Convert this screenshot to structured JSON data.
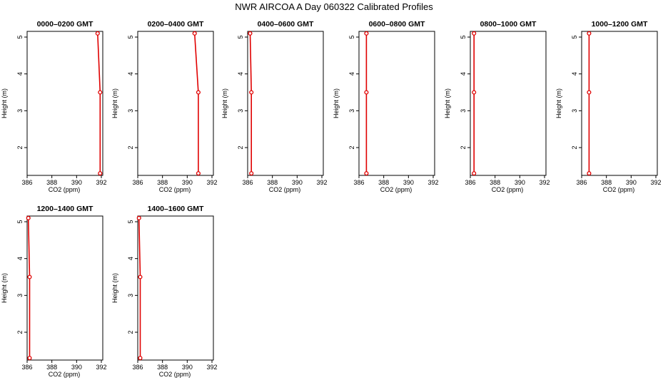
{
  "page_title": "NWR AIRCOA A  Day 060322  Calibrated Profiles",
  "colors": {
    "profile": "#e00000",
    "axis": "#000000",
    "background": "#ffffff"
  },
  "chart_data": [
    {
      "type": "line",
      "title": "0000–0200 GMT",
      "xlabel": "CO2 (ppm)",
      "ylabel": "Height (m)",
      "xlim": [
        386,
        392
      ],
      "ylim": [
        1.3,
        5.1
      ],
      "xticks": [
        "386",
        "388",
        "390",
        "392"
      ],
      "yticks": [
        "2",
        "3",
        "4",
        "5"
      ],
      "series": [
        {
          "x": [
            391.9,
            391.9,
            391.7
          ],
          "y": [
            1.3,
            3.5,
            5.1
          ]
        }
      ]
    },
    {
      "type": "line",
      "title": "0200–0400 GMT",
      "xlabel": "CO2 (ppm)",
      "ylabel": "Height (m)",
      "xlim": [
        386,
        392
      ],
      "ylim": [
        1.3,
        5.1
      ],
      "xticks": [
        "386",
        "388",
        "390",
        "392"
      ],
      "yticks": [
        "2",
        "3",
        "4",
        "5"
      ],
      "series": [
        {
          "x": [
            390.9,
            390.9,
            390.6
          ],
          "y": [
            1.3,
            3.5,
            5.1
          ]
        }
      ]
    },
    {
      "type": "line",
      "title": "0400–0600 GMT",
      "xlabel": "CO2 (ppm)",
      "ylabel": "Height (m)",
      "xlim": [
        386,
        392
      ],
      "ylim": [
        1.3,
        5.1
      ],
      "xticks": [
        "386",
        "388",
        "390",
        "392"
      ],
      "yticks": [
        "2",
        "3",
        "4",
        "5"
      ],
      "series": [
        {
          "x": [
            386.3,
            386.3,
            386.2
          ],
          "y": [
            1.3,
            3.5,
            5.1
          ]
        }
      ]
    },
    {
      "type": "line",
      "title": "0600–0800 GMT",
      "xlabel": "CO2 (ppm)",
      "ylabel": "Height (m)",
      "xlim": [
        386,
        392
      ],
      "ylim": [
        1.3,
        5.1
      ],
      "xticks": [
        "386",
        "388",
        "390",
        "392"
      ],
      "yticks": [
        "2",
        "3",
        "4",
        "5"
      ],
      "series": [
        {
          "x": [
            386.6,
            386.6,
            386.6
          ],
          "y": [
            1.3,
            3.5,
            5.1
          ]
        }
      ]
    },
    {
      "type": "line",
      "title": "0800–1000 GMT",
      "xlabel": "CO2 (ppm)",
      "ylabel": "Height (m)",
      "xlim": [
        386,
        392
      ],
      "ylim": [
        1.3,
        5.1
      ],
      "xticks": [
        "386",
        "388",
        "390",
        "392"
      ],
      "yticks": [
        "2",
        "3",
        "4",
        "5"
      ],
      "series": [
        {
          "x": [
            386.3,
            386.3,
            386.3
          ],
          "y": [
            1.3,
            3.5,
            5.1
          ]
        }
      ]
    },
    {
      "type": "line",
      "title": "1000–1200 GMT",
      "xlabel": "CO2 (ppm)",
      "ylabel": "Height (m)",
      "xlim": [
        386,
        392
      ],
      "ylim": [
        1.3,
        5.1
      ],
      "xticks": [
        "386",
        "388",
        "390",
        "392"
      ],
      "yticks": [
        "2",
        "3",
        "4",
        "5"
      ],
      "series": [
        {
          "x": [
            386.6,
            386.6,
            386.6
          ],
          "y": [
            1.3,
            3.5,
            5.1
          ]
        }
      ]
    },
    {
      "type": "line",
      "title": "1200–1400 GMT",
      "xlabel": "CO2 (ppm)",
      "ylabel": "Height (m)",
      "xlim": [
        386,
        392
      ],
      "ylim": [
        1.3,
        5.1
      ],
      "xticks": [
        "386",
        "388",
        "390",
        "392"
      ],
      "yticks": [
        "2",
        "3",
        "4",
        "5"
      ],
      "series": [
        {
          "x": [
            386.2,
            386.2,
            386.1
          ],
          "y": [
            1.3,
            3.5,
            5.1
          ]
        }
      ]
    },
    {
      "type": "line",
      "title": "1400–1600 GMT",
      "xlabel": "CO2 (ppm)",
      "ylabel": "Height (m)",
      "xlim": [
        386,
        392
      ],
      "ylim": [
        1.3,
        5.1
      ],
      "xticks": [
        "386",
        "388",
        "390",
        "392"
      ],
      "yticks": [
        "2",
        "3",
        "4",
        "5"
      ],
      "series": [
        {
          "x": [
            386.2,
            386.2,
            386.1
          ],
          "y": [
            1.3,
            3.5,
            5.1
          ]
        }
      ]
    }
  ]
}
